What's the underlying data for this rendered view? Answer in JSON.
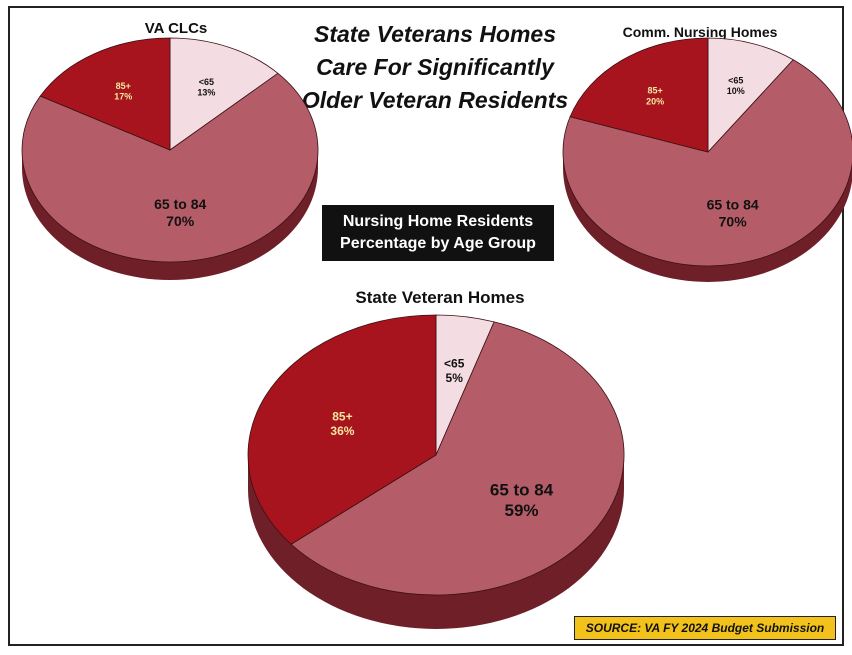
{
  "main_title": "State Veterans Homes Care For Significantly Older Veteran Residents",
  "subtitle": "Nursing Home Residents\nPercentage by Age Group",
  "source": "SOURCE: VA FY 2024 Budget Submission",
  "colors": {
    "under65": "#f3dde2",
    "age65to84": "#b45d68",
    "over85": "#a8141d",
    "side": "#6e1f28"
  },
  "chart_data": [
    {
      "type": "pie",
      "title": "VA CLCs",
      "slices": [
        {
          "category": "<65",
          "value": 13,
          "label_top": "<65",
          "label_bottom": "13%"
        },
        {
          "category": "65 to 84",
          "value": 70,
          "label_top": "65 to 84",
          "label_bottom": "70%"
        },
        {
          "category": "85+",
          "value": 17,
          "label_top": "85+",
          "label_bottom": "17%"
        }
      ]
    },
    {
      "type": "pie",
      "title": "Comm. Nursing Homes",
      "slices": [
        {
          "category": "<65",
          "value": 10,
          "label_top": "<65",
          "label_bottom": "10%"
        },
        {
          "category": "65 to 84",
          "value": 70,
          "label_top": "65 to 84",
          "label_bottom": "70%"
        },
        {
          "category": "85+",
          "value": 20,
          "label_top": "85+",
          "label_bottom": "20%"
        }
      ]
    },
    {
      "type": "pie",
      "title": "State Veteran Homes",
      "slices": [
        {
          "category": "<65",
          "value": 5,
          "label_top": "<65",
          "label_bottom": "5%"
        },
        {
          "category": "65 to 84",
          "value": 59,
          "label_top": "65 to 84",
          "label_bottom": "59%"
        },
        {
          "category": "85+",
          "value": 36,
          "label_top": "85+",
          "label_bottom": "36%"
        }
      ]
    }
  ]
}
